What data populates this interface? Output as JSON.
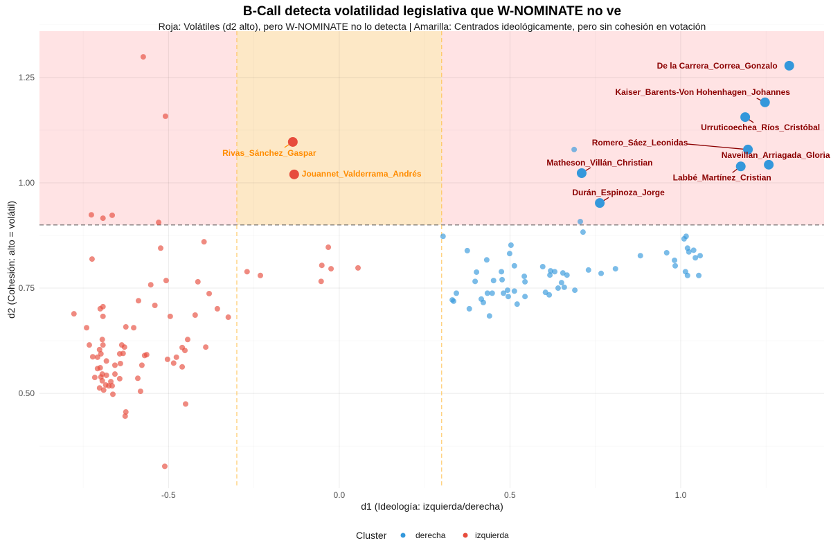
{
  "chart_data": {
    "type": "scatter",
    "title": "B-Call detecta volatilidad legislativa que W-NOMINATE no ve",
    "subtitle": "Roja: Volátiles (d2 alto), pero W-NOMINATE no lo detecta | Amarilla: Centrados ideológicamente, pero sin cohesión en votación",
    "xlabel": "d1 (Ideología: izquierda/derecha)",
    "ylabel": "d2 (Cohesión: alto = volátil)",
    "xlim": [
      -0.878,
      1.42
    ],
    "ylim": [
      0.275,
      1.36
    ],
    "x_ticks": [
      -0.5,
      0.0,
      0.5,
      1.0
    ],
    "x_tick_labels": [
      "-0.5",
      "0.0",
      "0.5",
      "1.0"
    ],
    "y_ticks": [
      0.5,
      0.75,
      1.0,
      1.25
    ],
    "y_tick_labels": [
      "0.50",
      "0.75",
      "1.00",
      "1.25"
    ],
    "grid": true,
    "threshold_y": 0.9,
    "center_band_x": [
      -0.3,
      0.3
    ],
    "region_colors": {
      "volatile": "#ffe3e4",
      "center": "#fde8c6",
      "threshold_line": "#555555",
      "band_line": "#ffc04d"
    },
    "legend": {
      "title": "Cluster",
      "placement": "bottom",
      "entries": [
        "derecha",
        "izquierda"
      ]
    },
    "series": [
      {
        "name": "derecha",
        "color": "#3498db",
        "points": [
          [
            0.304,
            0.873
          ],
          [
            0.714,
            0.883
          ],
          [
            0.706,
            0.908
          ],
          [
            0.688,
            1.079
          ],
          [
            0.375,
            0.839
          ],
          [
            0.503,
            0.852
          ],
          [
            0.499,
            0.832
          ],
          [
            0.432,
            0.817
          ],
          [
            0.513,
            0.803
          ],
          [
            0.402,
            0.788
          ],
          [
            0.475,
            0.789
          ],
          [
            0.398,
            0.766
          ],
          [
            0.452,
            0.768
          ],
          [
            0.477,
            0.77
          ],
          [
            0.542,
            0.778
          ],
          [
            0.544,
            0.765
          ],
          [
            0.596,
            0.801
          ],
          [
            0.619,
            0.791
          ],
          [
            0.631,
            0.789
          ],
          [
            0.617,
            0.781
          ],
          [
            0.655,
            0.786
          ],
          [
            0.667,
            0.781
          ],
          [
            0.73,
            0.793
          ],
          [
            0.767,
            0.785
          ],
          [
            0.809,
            0.796
          ],
          [
            0.882,
            0.827
          ],
          [
            0.959,
            0.834
          ],
          [
            0.982,
            0.816
          ],
          [
            0.984,
            0.803
          ],
          [
            1.01,
            0.867
          ],
          [
            1.016,
            0.873
          ],
          [
            1.02,
            0.845
          ],
          [
            1.024,
            0.836
          ],
          [
            1.038,
            0.84
          ],
          [
            1.043,
            0.822
          ],
          [
            1.057,
            0.827
          ],
          [
            1.014,
            0.789
          ],
          [
            1.02,
            0.78
          ],
          [
            1.053,
            0.78
          ],
          [
            0.651,
            0.763
          ],
          [
            0.641,
            0.75
          ],
          [
            0.659,
            0.752
          ],
          [
            0.69,
            0.745
          ],
          [
            0.604,
            0.74
          ],
          [
            0.615,
            0.734
          ],
          [
            0.493,
            0.745
          ],
          [
            0.513,
            0.743
          ],
          [
            0.481,
            0.738
          ],
          [
            0.495,
            0.73
          ],
          [
            0.544,
            0.73
          ],
          [
            0.521,
            0.712
          ],
          [
            0.434,
            0.738
          ],
          [
            0.448,
            0.738
          ],
          [
            0.416,
            0.724
          ],
          [
            0.422,
            0.716
          ],
          [
            0.343,
            0.738
          ],
          [
            0.331,
            0.722
          ],
          [
            0.335,
            0.719
          ],
          [
            0.381,
            0.701
          ],
          [
            0.44,
            0.684
          ]
        ]
      },
      {
        "name": "izquierda",
        "color": "#e74c3c",
        "points": [
          [
            -0.574,
            1.299
          ],
          [
            -0.509,
            1.158
          ],
          [
            -0.726,
            0.924
          ],
          [
            -0.665,
            0.923
          ],
          [
            -0.692,
            0.916
          ],
          [
            -0.529,
            0.906
          ],
          [
            -0.724,
            0.819
          ],
          [
            -0.523,
            0.845
          ],
          [
            -0.396,
            0.86
          ],
          [
            -0.552,
            0.758
          ],
          [
            -0.507,
            0.768
          ],
          [
            -0.414,
            0.765
          ],
          [
            -0.511,
            0.327
          ],
          [
            -0.27,
            0.789
          ],
          [
            -0.231,
            0.78
          ],
          [
            -0.051,
            0.804
          ],
          [
            -0.032,
            0.847
          ],
          [
            -0.024,
            0.796
          ],
          [
            -0.053,
            0.766
          ],
          [
            0.055,
            0.798
          ],
          [
            -0.325,
            0.681
          ],
          [
            -0.381,
            0.737
          ],
          [
            -0.588,
            0.72
          ],
          [
            -0.54,
            0.709
          ],
          [
            -0.7,
            0.701
          ],
          [
            -0.692,
            0.706
          ],
          [
            -0.777,
            0.689
          ],
          [
            -0.357,
            0.701
          ],
          [
            -0.692,
            0.683
          ],
          [
            -0.495,
            0.683
          ],
          [
            -0.422,
            0.686
          ],
          [
            -0.74,
            0.656
          ],
          [
            -0.625,
            0.658
          ],
          [
            -0.602,
            0.656
          ],
          [
            -0.444,
            0.628
          ],
          [
            -0.694,
            0.628
          ],
          [
            -0.732,
            0.615
          ],
          [
            -0.692,
            0.615
          ],
          [
            -0.637,
            0.615
          ],
          [
            -0.629,
            0.61
          ],
          [
            -0.46,
            0.609
          ],
          [
            -0.452,
            0.602
          ],
          [
            -0.391,
            0.61
          ],
          [
            -0.702,
            0.604
          ],
          [
            -0.698,
            0.594
          ],
          [
            -0.643,
            0.594
          ],
          [
            -0.633,
            0.595
          ],
          [
            -0.722,
            0.587
          ],
          [
            -0.708,
            0.586
          ],
          [
            -0.57,
            0.59
          ],
          [
            -0.564,
            0.592
          ],
          [
            -0.503,
            0.581
          ],
          [
            -0.477,
            0.586
          ],
          [
            -0.485,
            0.572
          ],
          [
            -0.46,
            0.563
          ],
          [
            -0.682,
            0.577
          ],
          [
            -0.657,
            0.567
          ],
          [
            -0.641,
            0.571
          ],
          [
            -0.578,
            0.567
          ],
          [
            -0.708,
            0.559
          ],
          [
            -0.7,
            0.561
          ],
          [
            -0.694,
            0.546
          ],
          [
            -0.682,
            0.543
          ],
          [
            -0.657,
            0.546
          ],
          [
            -0.716,
            0.538
          ],
          [
            -0.698,
            0.539
          ],
          [
            -0.643,
            0.535
          ],
          [
            -0.59,
            0.536
          ],
          [
            -0.694,
            0.53
          ],
          [
            -0.669,
            0.528
          ],
          [
            -0.684,
            0.52
          ],
          [
            -0.675,
            0.518
          ],
          [
            -0.665,
            0.518
          ],
          [
            -0.702,
            0.513
          ],
          [
            -0.69,
            0.508
          ],
          [
            -0.663,
            0.498
          ],
          [
            -0.582,
            0.505
          ],
          [
            -0.45,
            0.475
          ],
          [
            -0.625,
            0.456
          ],
          [
            -0.627,
            0.446
          ]
        ]
      }
    ],
    "highlighted": [
      {
        "name": "De la Carrera_Correa_Gonzalo",
        "x": 1.318,
        "y": 1.278,
        "cluster": "derecha"
      },
      {
        "name": "Kaiser_Barents-Von Hohenhagen_Johannes",
        "x": 1.247,
        "y": 1.191,
        "cluster": "derecha"
      },
      {
        "name": "Urruticoechea_Ríos_Cristóbal",
        "x": 1.189,
        "y": 1.156,
        "cluster": "derecha"
      },
      {
        "name": "Romero_Sáez_Leonidas",
        "x": 1.197,
        "y": 1.079,
        "cluster": "derecha"
      },
      {
        "name": "Naveillan_Arriagada_Gloria",
        "x": 1.258,
        "y": 1.043,
        "cluster": "derecha"
      },
      {
        "name": "Labbé_Martínez_Cristian",
        "x": 1.176,
        "y": 1.039,
        "cluster": "derecha"
      },
      {
        "name": "Matheson_Villán_Christian",
        "x": 0.71,
        "y": 1.023,
        "cluster": "derecha"
      },
      {
        "name": "Durán_Espinoza_Jorge",
        "x": 0.763,
        "y": 0.952,
        "cluster": "derecha"
      },
      {
        "name": "Rivas_Sánchez_Gaspar",
        "x": -0.136,
        "y": 1.097,
        "cluster": "izquierda"
      },
      {
        "name": "Jouannet_Valderrama_Andrés",
        "x": -0.132,
        "y": 1.02,
        "cluster": "izquierda"
      }
    ],
    "label_colors": {
      "derecha": "#8b0000",
      "izquierda": "#ff8c00"
    }
  }
}
